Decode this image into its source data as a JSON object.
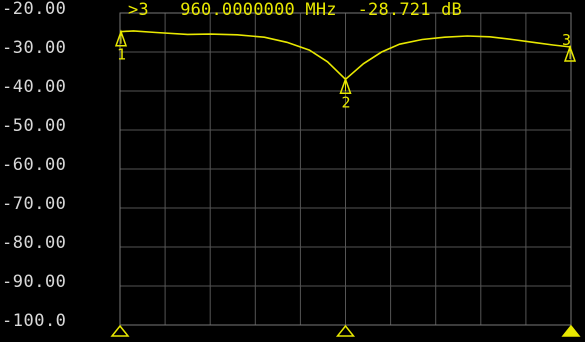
{
  "marker_readout": {
    "indicator": ">3",
    "frequency": "960.0000000 MHz",
    "value": "-28.721 dB"
  },
  "colors": {
    "background": "#000000",
    "grid": "#555555",
    "trace": "#e8e800",
    "axis_text": "#d8d8d8"
  },
  "chart_data": {
    "type": "line",
    "ylim": [
      -100,
      -20
    ],
    "y_ticks": [
      "-20.00",
      "-30.00",
      "-40.00",
      "-50.00",
      "-60.00",
      "-70.00",
      "-80.00",
      "-90.00",
      "-100.0"
    ],
    "y_tick_values": [
      -20,
      -30,
      -40,
      -50,
      -60,
      -70,
      -80,
      -90,
      -100
    ],
    "x_range": [
      0,
      1
    ],
    "grid": true,
    "series": [
      {
        "x": [
          0,
          0.03,
          0.08,
          0.15,
          0.2,
          0.26,
          0.32,
          0.37,
          0.42,
          0.46,
          0.5,
          0.54,
          0.58,
          0.62,
          0.67,
          0.72,
          0.77,
          0.82,
          0.87,
          0.92,
          0.96,
          1.0
        ],
        "values": [
          -24.8,
          -24.6,
          -25.0,
          -25.5,
          -25.4,
          -25.6,
          -26.2,
          -27.5,
          -29.5,
          -32.5,
          -37.0,
          -33.0,
          -30.0,
          -28.0,
          -26.8,
          -26.2,
          -25.9,
          -26.1,
          -26.8,
          -27.6,
          -28.2,
          -28.721
        ]
      }
    ],
    "markers": [
      {
        "label": "1",
        "x": 0.0,
        "value": -24.8
      },
      {
        "label": "2",
        "x": 0.5,
        "value": -37.0
      },
      {
        "label": "3",
        "x": 1.0,
        "value": -28.721,
        "active": true
      }
    ],
    "bottom_markers": [
      {
        "x": 0.0,
        "filled": false
      },
      {
        "x": 0.5,
        "filled": false
      },
      {
        "x": 1.0,
        "filled": true
      }
    ]
  }
}
